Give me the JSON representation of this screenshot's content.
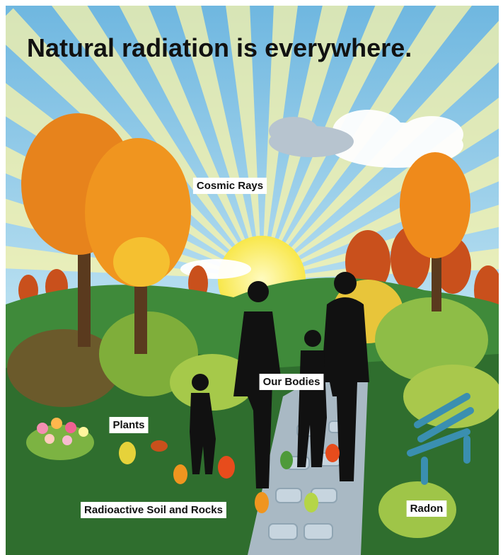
{
  "title": "Natural radiation is everywhere.",
  "labels": [
    "Cosmic Rays",
    "Our Bodies",
    "Plants",
    "Radioactive Soil and Rocks",
    "Radon"
  ]
}
